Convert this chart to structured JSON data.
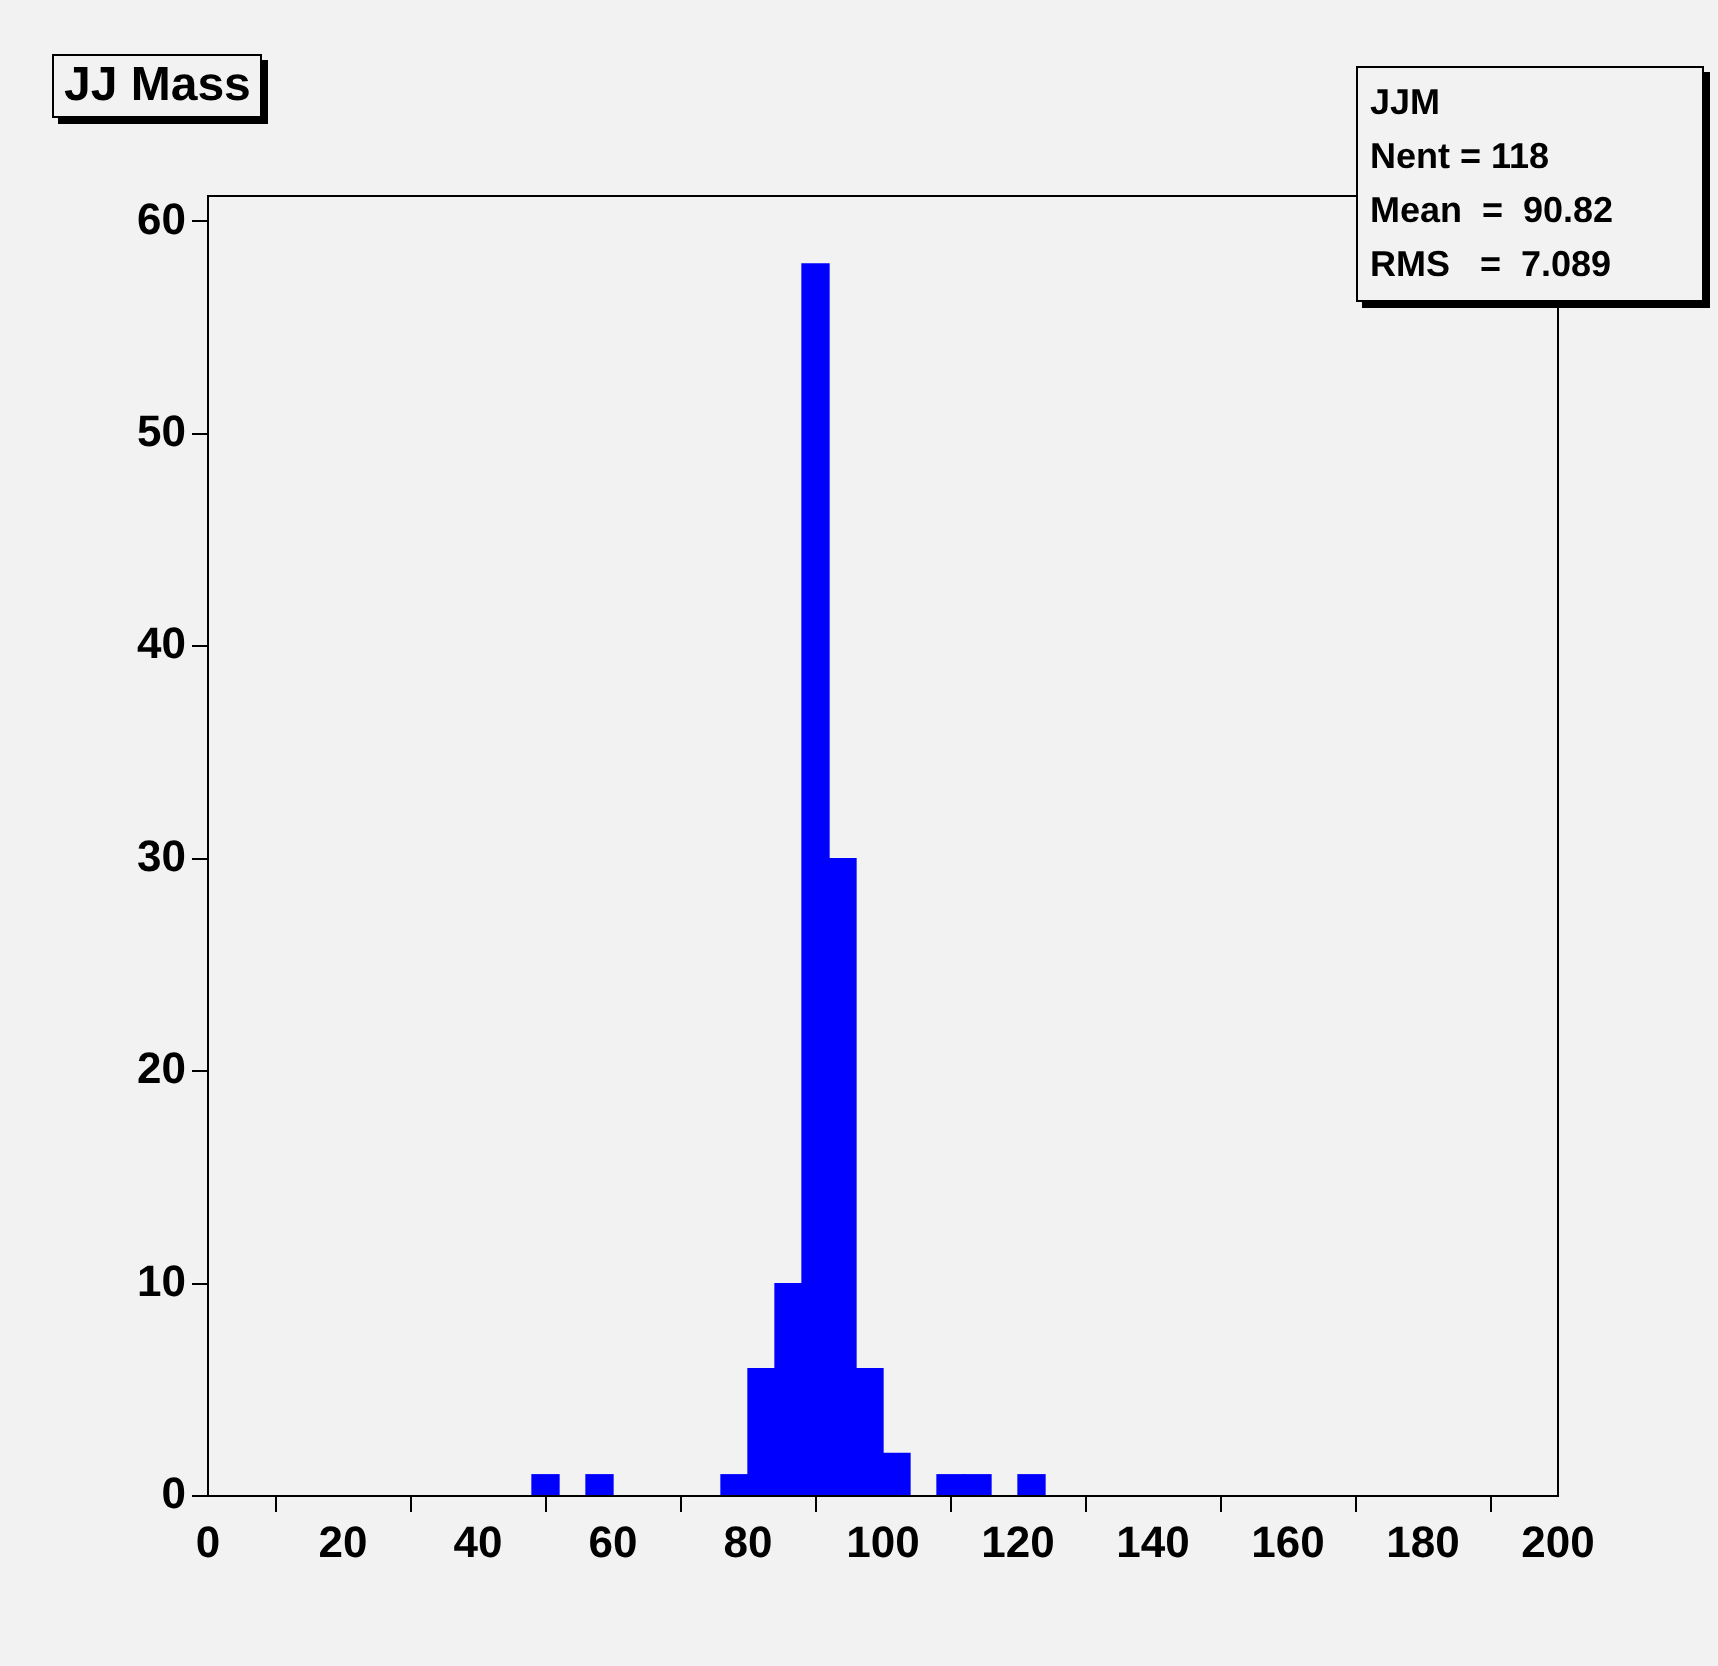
{
  "chart_data": {
    "type": "histogram",
    "title": "JJ Mass",
    "bins": [
      0,
      4,
      8,
      12,
      16,
      20,
      24,
      28,
      32,
      36,
      40,
      44,
      48,
      52,
      56,
      60,
      64,
      68,
      72,
      76,
      80,
      84,
      88,
      92,
      96,
      100,
      104,
      108,
      112,
      116,
      120,
      124,
      128,
      132,
      136,
      140,
      144,
      148,
      152,
      156,
      160,
      164,
      168,
      172,
      176,
      180,
      184,
      188,
      192,
      196,
      200
    ],
    "values": [
      0,
      0,
      0,
      0,
      0,
      0,
      0,
      0,
      0,
      0,
      0,
      0,
      1,
      0,
      1,
      0,
      0,
      0,
      0,
      1,
      6,
      10,
      58,
      30,
      6,
      2,
      0,
      1,
      1,
      0,
      1,
      0,
      0,
      0,
      0,
      0,
      0,
      0,
      0,
      0,
      0,
      0,
      0,
      0,
      0,
      0,
      0,
      0,
      0,
      0
    ],
    "color": "#0000ff",
    "xlim": [
      0,
      200
    ],
    "xticks": [
      0,
      20,
      40,
      60,
      80,
      100,
      120,
      140,
      160,
      180,
      200
    ],
    "ylim": [
      0,
      61.2
    ],
    "yticks": [
      0,
      10,
      20,
      30,
      40,
      50,
      60
    ],
    "grid": false,
    "legend": false,
    "annotations": [
      "JJM",
      "Nent = 118",
      "Mean  =  90.82",
      "RMS   =  7.089"
    ]
  }
}
